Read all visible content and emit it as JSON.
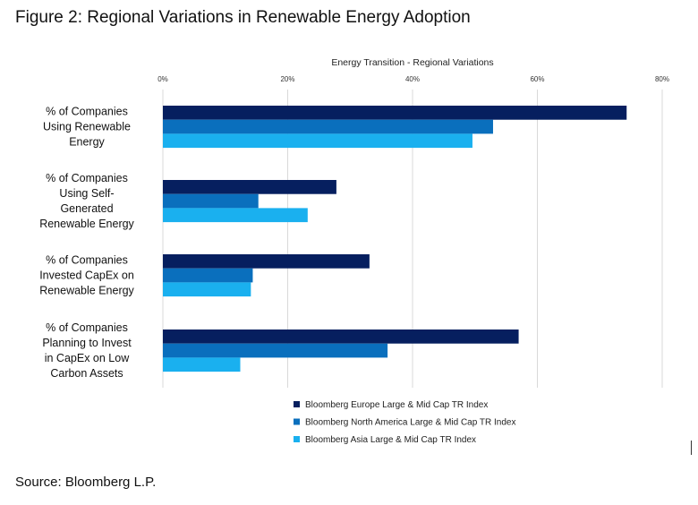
{
  "figure_title": "Figure 2: Regional Variations in Renewable Energy Adoption",
  "source": "Source: Bloomberg L.P.",
  "chart_data": {
    "type": "bar",
    "orientation": "horizontal",
    "title": "Energy Transition  - Regional Variations",
    "xlim": [
      0,
      80
    ],
    "x_ticks": [
      "0%",
      "20%",
      "40%",
      "60%",
      "80%"
    ],
    "x_tick_values": [
      0,
      20,
      40,
      60,
      80
    ],
    "grid": true,
    "legend_position": "bottom",
    "categories": [
      [
        "% of Companies",
        "Using Renewable",
        "Energy"
      ],
      [
        "% of Companies",
        "Using Self-",
        "Generated",
        "Renewable Energy"
      ],
      [
        "% of Companies",
        "Invested CapEx on",
        "Renewable Energy"
      ],
      [
        "% of Companies",
        "Planning to Invest",
        "in CapEx on Low",
        "Carbon Assets"
      ]
    ],
    "series": [
      {
        "name": "Bloomberg Europe Large & Mid Cap TR Index",
        "color": "#061f5f",
        "values": [
          74.3,
          27.8,
          33.1,
          57.0
        ]
      },
      {
        "name": "Bloomberg North America Large & Mid Cap TR Index",
        "color": "#0a6fbd",
        "values": [
          52.9,
          15.3,
          14.4,
          36.0
        ]
      },
      {
        "name": "Bloomberg Asia Large & Mid Cap TR Index",
        "color": "#1ab0ef",
        "values": [
          49.6,
          23.2,
          14.1,
          12.4
        ]
      }
    ]
  }
}
